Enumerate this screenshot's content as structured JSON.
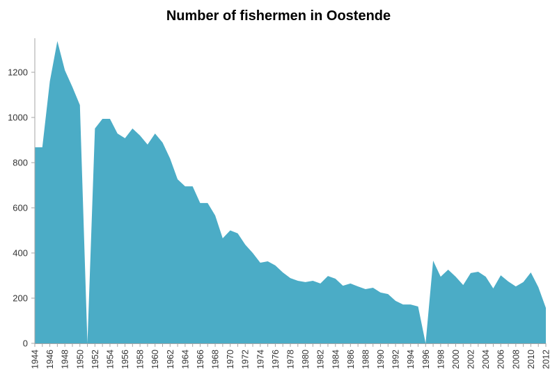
{
  "chart_data": {
    "type": "area",
    "title": "Number of fishermen in Oostende",
    "xlabel": "",
    "ylabel": "",
    "ylim": [
      0,
      1350
    ],
    "yticks": [
      0,
      200,
      400,
      600,
      800,
      1000,
      1200
    ],
    "xtick_labels": [
      "1944",
      "1946",
      "1948",
      "1950",
      "1952",
      "1954",
      "1956",
      "1958",
      "1960",
      "1962",
      "1964",
      "1966",
      "1968",
      "1970",
      "1972",
      "1974",
      "1976",
      "1978",
      "1980",
      "1982",
      "1984",
      "1986",
      "1988",
      "1990",
      "1992",
      "1994",
      "1996",
      "1998",
      "2000",
      "2002",
      "2004",
      "2006",
      "2008",
      "2010",
      "2012"
    ],
    "grid": false,
    "legend": null,
    "color": "#4BACC6",
    "x": [
      1944,
      1945,
      1946,
      1947,
      1948,
      1949,
      1950,
      1951,
      1952,
      1953,
      1954,
      1955,
      1956,
      1957,
      1958,
      1959,
      1960,
      1961,
      1962,
      1963,
      1964,
      1965,
      1966,
      1967,
      1968,
      1969,
      1970,
      1971,
      1972,
      1973,
      1974,
      1975,
      1976,
      1977,
      1978,
      1979,
      1980,
      1981,
      1982,
      1983,
      1984,
      1985,
      1986,
      1987,
      1988,
      1989,
      1990,
      1991,
      1992,
      1993,
      1994,
      1995,
      1996,
      1997,
      1998,
      1999,
      2000,
      2001,
      2002,
      2003,
      2004,
      2005,
      2006,
      2007,
      2008,
      2009,
      2010,
      2011,
      2012
    ],
    "values": [
      868,
      868,
      1160,
      1338,
      1209,
      1135,
      1055,
      0,
      951,
      994,
      994,
      929,
      908,
      951,
      920,
      880,
      929,
      889,
      818,
      726,
      695,
      695,
      621,
      621,
      566,
      465,
      500,
      487,
      437,
      400,
      357,
      363,
      345,
      314,
      289,
      277,
      271,
      277,
      265,
      298,
      286,
      255,
      265,
      252,
      240,
      246,
      225,
      218,
      188,
      172,
      172,
      163,
      0,
      366,
      295,
      326,
      295,
      258,
      311,
      317,
      295,
      243,
      301,
      274,
      252,
      271,
      314,
      249,
      157
    ]
  }
}
